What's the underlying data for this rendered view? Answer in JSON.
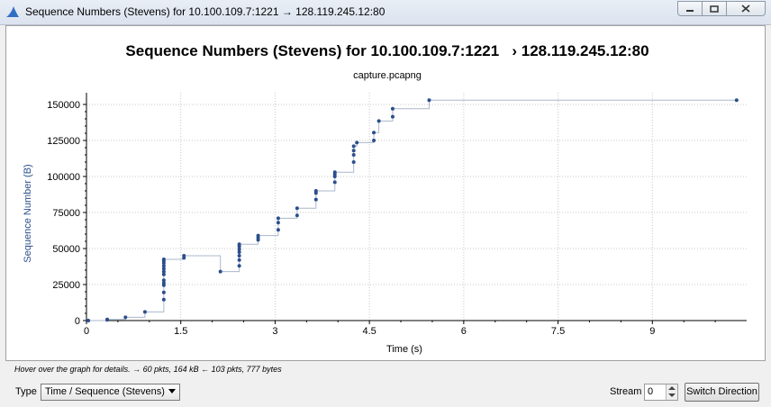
{
  "window": {
    "title": "Sequence Numbers (Stevens) for 10.100.109.7:1221 → 128.119.245.12:80",
    "buttons": {
      "minimize": "minimize",
      "maximize": "maximize",
      "close": "close"
    }
  },
  "hint": "Hover over the graph for details. → 60 pkts, 164 kB ← 103 pkts, 777 bytes",
  "controls": {
    "type_label": "Type",
    "type_value": "Time / Sequence (Stevens)",
    "stream_label": "Stream",
    "stream_value": "0",
    "switch_label": "Switch Direction"
  },
  "icons": {
    "app": "wireshark-fin-icon",
    "dropdown": "chevron-down-icon",
    "spin_up": "spin-up-icon",
    "spin_down": "spin-down-icon"
  },
  "colors": {
    "series": "#2b4e8c",
    "step": "#aab8cc",
    "grid": "#c8c8c8"
  },
  "chart_data": {
    "type": "scatter",
    "title": "Sequence Numbers (Stevens) for 10.100.109.7:1221   › 128.119.245.12:80",
    "subtitle": "capture.pcapng",
    "xlabel": "Time (s)",
    "ylabel": "Sequence Number (B)",
    "xlim": [
      0,
      10.5
    ],
    "ylim": [
      0,
      155000
    ],
    "xticks": [
      0,
      1.5,
      3,
      4.5,
      6,
      7.5,
      9
    ],
    "xtick_labels": [
      "0",
      "1.5",
      "3",
      "4.5",
      "6",
      "7.5",
      "9"
    ],
    "yticks": [
      0,
      25000,
      50000,
      75000,
      100000,
      125000,
      150000
    ],
    "ytick_labels": [
      "0",
      "25000",
      "50000",
      "75000",
      "100000",
      "125000",
      "150000"
    ],
    "grid": true,
    "legend": "none",
    "series": [
      {
        "points": [
          [
            0.03,
            0
          ],
          [
            0.33,
            500
          ],
          [
            0.33,
            800
          ],
          [
            0.62,
            2300
          ],
          [
            0.93,
            6000
          ],
          [
            1.23,
            14500
          ],
          [
            1.23,
            19500
          ],
          [
            1.23,
            24500
          ],
          [
            1.23,
            26000
          ],
          [
            1.23,
            28000
          ],
          [
            1.23,
            32000
          ],
          [
            1.23,
            34000
          ],
          [
            1.23,
            36000
          ],
          [
            1.23,
            38000
          ],
          [
            1.23,
            40000
          ],
          [
            1.23,
            41500
          ],
          [
            1.23,
            42500
          ],
          [
            1.55,
            43500
          ],
          [
            1.55,
            45000
          ],
          [
            2.13,
            34000
          ],
          [
            2.43,
            38000
          ],
          [
            2.43,
            42000
          ],
          [
            2.43,
            45000
          ],
          [
            2.43,
            47500
          ],
          [
            2.43,
            49500
          ],
          [
            2.43,
            51500
          ],
          [
            2.43,
            53000
          ],
          [
            2.73,
            56000
          ],
          [
            2.73,
            57500
          ],
          [
            2.73,
            59000
          ],
          [
            3.05,
            63000
          ],
          [
            3.05,
            68000
          ],
          [
            3.05,
            71000
          ],
          [
            3.35,
            73000
          ],
          [
            3.35,
            78000
          ],
          [
            3.65,
            84000
          ],
          [
            3.65,
            88500
          ],
          [
            3.65,
            90000
          ],
          [
            3.95,
            96000
          ],
          [
            3.95,
            100000
          ],
          [
            3.95,
            101500
          ],
          [
            3.95,
            103000
          ],
          [
            4.25,
            110000
          ],
          [
            4.25,
            115000
          ],
          [
            4.25,
            118000
          ],
          [
            4.25,
            121000
          ],
          [
            4.3,
            123500
          ],
          [
            4.57,
            125000
          ],
          [
            4.57,
            130500
          ],
          [
            4.65,
            138500
          ],
          [
            4.87,
            141500
          ],
          [
            4.87,
            147000
          ],
          [
            5.45,
            153000
          ],
          [
            10.34,
            153000
          ]
        ]
      }
    ]
  }
}
